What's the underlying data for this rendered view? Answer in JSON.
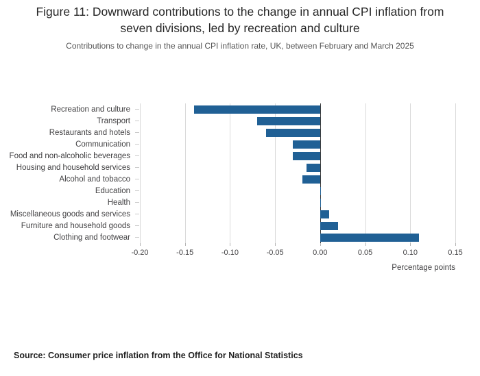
{
  "header": {
    "title": "Figure 11: Downward contributions to the change in annual CPI inflation from seven divisions, led by recreation and culture",
    "subtitle": "Contributions to change in the annual CPI inflation rate, UK, between February and March 2025"
  },
  "footer": {
    "source": "Source: Consumer price inflation from the Office for National Statistics"
  },
  "chart_data": {
    "type": "bar",
    "orientation": "horizontal",
    "title": "Figure 11: Downward contributions to the change in annual CPI inflation from seven divisions, led by recreation and culture",
    "subtitle": "Contributions to change in the annual CPI inflation rate, UK, between February and March 2025",
    "categories": [
      "Recreation and culture",
      "Transport",
      "Restaurants and hotels",
      "Communication",
      "Food and non-alcoholic beverages",
      "Housing and household services",
      "Alcohol and tobacco",
      "Education",
      "Health",
      "Miscellaneous goods and services",
      "Furniture and household goods",
      "Clothing and footwear"
    ],
    "values": [
      -0.14,
      -0.07,
      -0.06,
      -0.03,
      -0.03,
      -0.015,
      -0.02,
      0,
      0,
      0.01,
      0.02,
      0.11
    ],
    "xlabel": "Percentage points",
    "xlim": [
      -0.2,
      0.15
    ],
    "xticks": [
      -0.2,
      -0.15,
      -0.1,
      -0.05,
      0,
      0.05,
      0.1,
      0.15
    ],
    "bar_color": "#206095",
    "grid": true,
    "legend": false
  }
}
